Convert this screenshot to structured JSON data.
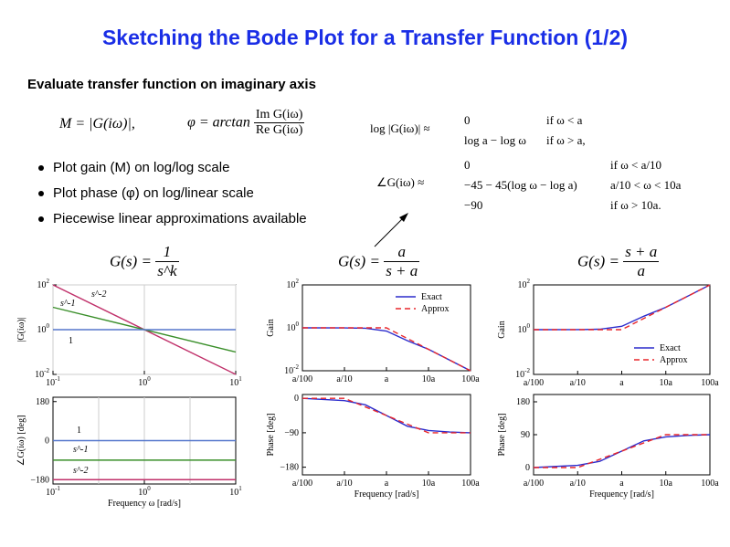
{
  "title": "Sketching the Bode Plot for a Transfer Function (1/2)",
  "subtitle": "Evaluate transfer function on imaginary axis",
  "equations": {
    "gain_def": "M = |G(iω)|,",
    "phase_def_lhs": "φ = arctan",
    "phase_num": "Im G(iω)",
    "phase_den": "Re G(iω)",
    "log_gain_lhs": "log |G(iω)| ≈",
    "log_gain_cases": [
      [
        "0",
        "if ω < a"
      ],
      [
        "log a − log ω",
        "if ω > a,"
      ]
    ],
    "phase_lhs": "∠G(iω) ≈",
    "phase_cases": [
      [
        "0",
        "if ω < a/10"
      ],
      [
        "−45 − 45(log ω − log a)",
        "a/10 < ω < 10a"
      ],
      [
        "−90",
        "if ω > 10a."
      ]
    ]
  },
  "bullets": [
    "Plot gain (M) on log/log scale",
    "Plot phase (φ) on log/linear scale",
    "Piecewise linear approximations available"
  ],
  "tf_titles": [
    {
      "lhs": "G(s) =",
      "num": "1",
      "den": "s^k"
    },
    {
      "lhs": "G(s) =",
      "num": "a",
      "den": "s + a"
    },
    {
      "lhs": "G(s) =",
      "num": "s + a",
      "den": "a"
    }
  ],
  "colors": {
    "title": "#1a2ee6",
    "exact": "#2b2bcc",
    "approx": "#e8262b",
    "s_inv": "#3a8f2a",
    "s_inv2": "#c0306a",
    "one": "#5577cc"
  },
  "chart_data": [
    {
      "type": "line",
      "panel": "gain-1",
      "ylabel": "|G(iω)|",
      "xticks": [
        "10^-1",
        "10^0",
        "10^1"
      ],
      "yticks": [
        "10^2",
        "10^0",
        "10^-2"
      ],
      "xlim_log10": [
        -1,
        1
      ],
      "ylim_log10": [
        -2,
        2
      ],
      "log": true,
      "series": [
        {
          "name": "s^-2",
          "x": [
            0.1,
            10
          ],
          "y": [
            100,
            0.01
          ]
        },
        {
          "name": "s^-1",
          "x": [
            0.1,
            10
          ],
          "y": [
            10,
            0.1
          ]
        },
        {
          "name": "1",
          "x": [
            0.1,
            10
          ],
          "y": [
            1,
            1
          ]
        }
      ]
    },
    {
      "type": "line",
      "panel": "phase-1",
      "xlabel": "Frequency ω [rad/s]",
      "ylabel": "∠G(iω) [deg]",
      "xticks": [
        "10^-1",
        "10^0",
        "10^1"
      ],
      "yticks": [
        "180",
        "0",
        "−180"
      ],
      "ylim": [
        -200,
        200
      ],
      "series": [
        {
          "name": "1",
          "y": 0
        },
        {
          "name": "s^-1",
          "y": -90
        },
        {
          "name": "s^-2",
          "y": -180
        }
      ]
    },
    {
      "type": "line",
      "panel": "gain-2",
      "ylabel": "Gain",
      "legend": [
        "Exact",
        "Approx"
      ],
      "xticks": [
        "a/100",
        "a/10",
        "a",
        "10a",
        "100a"
      ],
      "yticks": [
        "10^2",
        "10^0",
        "10^-2"
      ],
      "xlim_log10": [
        -2,
        2
      ],
      "ylim_log10": [
        -2,
        2
      ],
      "series": [
        {
          "name": "Exact",
          "x_log10": [
            -2,
            -1,
            -0.5,
            0,
            0.5,
            1,
            2
          ],
          "y_log10": [
            0,
            -0.002,
            -0.02,
            -0.15,
            -0.6,
            -1,
            -2
          ]
        },
        {
          "name": "Approx",
          "x_log10": [
            -2,
            0,
            2
          ],
          "y_log10": [
            0,
            0,
            -2
          ]
        }
      ]
    },
    {
      "type": "line",
      "panel": "phase-2",
      "xlabel": "Frequency [rad/s]",
      "ylabel": "Phase [deg]",
      "xticks": [
        "a/100",
        "a/10",
        "a",
        "10a",
        "100a"
      ],
      "yticks": [
        "0",
        "−90",
        "−180"
      ],
      "ylim": [
        -200,
        10
      ],
      "series": [
        {
          "name": "Exact",
          "x_log10": [
            -2,
            -1,
            -0.5,
            0,
            0.5,
            1,
            1.5,
            2
          ],
          "y": [
            0,
            -6,
            -17,
            -45,
            -73,
            -84,
            -88,
            -90
          ]
        },
        {
          "name": "Approx",
          "x_log10": [
            -2,
            -1,
            1,
            2
          ],
          "y": [
            0,
            0,
            -90,
            -90
          ]
        }
      ]
    },
    {
      "type": "line",
      "panel": "gain-3",
      "ylabel": "Gain",
      "legend": [
        "Exact",
        "Approx"
      ],
      "xticks": [
        "a/100",
        "a/10",
        "a",
        "10a",
        "100a"
      ],
      "yticks": [
        "10^2",
        "10^0",
        "10^-2"
      ],
      "xlim_log10": [
        -2,
        2
      ],
      "ylim_log10": [
        -2,
        2
      ],
      "series": [
        {
          "name": "Exact",
          "x_log10": [
            -2,
            -1,
            -0.5,
            0,
            0.5,
            1,
            2
          ],
          "y_log10": [
            0,
            0.002,
            0.02,
            0.15,
            0.6,
            1,
            2
          ]
        },
        {
          "name": "Approx",
          "x_log10": [
            -2,
            0,
            2
          ],
          "y_log10": [
            0,
            0,
            2
          ]
        }
      ]
    },
    {
      "type": "line",
      "panel": "phase-3",
      "xlabel": "Frequency [rad/s]",
      "ylabel": "Phase [deg]",
      "xticks": [
        "a/100",
        "a/10",
        "a",
        "10a",
        "100a"
      ],
      "yticks": [
        "180",
        "90",
        "0"
      ],
      "ylim": [
        -20,
        200
      ],
      "series": [
        {
          "name": "Exact",
          "x_log10": [
            -2,
            -1,
            -0.5,
            0,
            0.5,
            1,
            1.5,
            2
          ],
          "y": [
            0,
            6,
            17,
            45,
            73,
            84,
            88,
            90
          ]
        },
        {
          "name": "Approx",
          "x_log10": [
            -2,
            -1,
            1,
            2
          ],
          "y": [
            0,
            0,
            90,
            90
          ]
        }
      ]
    }
  ]
}
